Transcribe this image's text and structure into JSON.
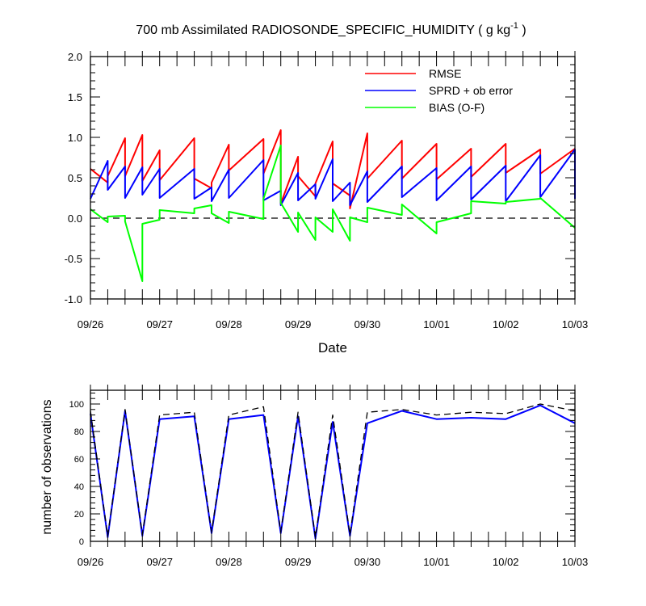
{
  "top_chart": {
    "title": "700 mb Assimilated RADIOSONDE_SPECIFIC_HUMIDITY ( g kg",
    "title_sup": "-1",
    "title_end": " )",
    "xlabel": "Date",
    "ylim": [
      -1.0,
      2.0
    ],
    "ytick_labels": [
      "2.0",
      "1.5",
      "1.0",
      "0.5",
      "0.0",
      "-0.5",
      "-1.0"
    ],
    "legend": [
      "RMSE",
      "SPRD + ob error",
      "BIAS (O-F)"
    ]
  },
  "bottom_chart": {
    "ylabel": "number of observations",
    "ylim": [
      0,
      110
    ],
    "ytick_labels": [
      "100",
      "80",
      "60",
      "40",
      "20",
      "0"
    ]
  },
  "x_tick_labels": [
    "09/26",
    "09/27",
    "09/28",
    "09/29",
    "09/30",
    "10/01",
    "10/02",
    "10/03"
  ],
  "colors": {
    "rmse": "#ff0000",
    "sprd": "#0000ff",
    "bias": "#00ff00",
    "count_used": "#0000ff",
    "count_total": "#000000"
  },
  "chart_data": [
    {
      "type": "line",
      "x_unit": "days since 09/26 00Z",
      "xlim": [
        0,
        7
      ],
      "ylim": [
        -1.0,
        2.0
      ],
      "series": [
        {
          "name": "RMSE",
          "points": [
            [
              0,
              0.61
            ],
            [
              0.25,
              0.44
            ],
            [
              0.25,
              0.52
            ],
            [
              0.5,
              0.99
            ],
            [
              0.5,
              0.52
            ],
            [
              0.75,
              1.03
            ],
            [
              0.75,
              0.46
            ],
            [
              1.0,
              0.84
            ],
            [
              1.0,
              0.47
            ],
            [
              1.5,
              0.99
            ],
            [
              1.5,
              0.49
            ],
            [
              1.75,
              0.37
            ],
            [
              1.75,
              0.44
            ],
            [
              2.0,
              0.91
            ],
            [
              2.0,
              0.59
            ],
            [
              2.5,
              0.98
            ],
            [
              2.5,
              0.55
            ],
            [
              2.75,
              1.09
            ],
            [
              2.75,
              0.18
            ],
            [
              3.0,
              0.76
            ],
            [
              3.0,
              0.52
            ],
            [
              3.25,
              0.27
            ],
            [
              3.25,
              0.43
            ],
            [
              3.5,
              0.95
            ],
            [
              3.5,
              0.43
            ],
            [
              3.75,
              0.28
            ],
            [
              3.75,
              0.12
            ],
            [
              4.0,
              1.05
            ],
            [
              4.0,
              0.49
            ],
            [
              4.5,
              0.96
            ],
            [
              4.5,
              0.49
            ],
            [
              5.0,
              0.92
            ],
            [
              5.0,
              0.48
            ],
            [
              5.5,
              0.86
            ],
            [
              5.5,
              0.51
            ],
            [
              6.0,
              0.92
            ],
            [
              6.0,
              0.56
            ],
            [
              6.5,
              0.85
            ],
            [
              6.5,
              0.55
            ],
            [
              7.0,
              0.86
            ]
          ]
        },
        {
          "name": "SPRD + ob error",
          "points": [
            [
              0,
              0.24
            ],
            [
              0.25,
              0.71
            ],
            [
              0.25,
              0.35
            ],
            [
              0.5,
              0.64
            ],
            [
              0.5,
              0.25
            ],
            [
              0.75,
              0.63
            ],
            [
              0.75,
              0.29
            ],
            [
              1.0,
              0.61
            ],
            [
              1.0,
              0.25
            ],
            [
              1.5,
              0.61
            ],
            [
              1.5,
              0.24
            ],
            [
              1.75,
              0.38
            ],
            [
              1.75,
              0.21
            ],
            [
              2.0,
              0.6
            ],
            [
              2.0,
              0.25
            ],
            [
              2.5,
              0.72
            ],
            [
              2.5,
              0.22
            ],
            [
              2.75,
              0.34
            ],
            [
              2.75,
              0.16
            ],
            [
              3.0,
              0.56
            ],
            [
              3.0,
              0.22
            ],
            [
              3.25,
              0.42
            ],
            [
              3.25,
              0.24
            ],
            [
              3.5,
              0.73
            ],
            [
              3.5,
              0.21
            ],
            [
              3.75,
              0.44
            ],
            [
              3.75,
              0.16
            ],
            [
              4.0,
              0.58
            ],
            [
              4.0,
              0.2
            ],
            [
              4.5,
              0.64
            ],
            [
              4.5,
              0.26
            ],
            [
              5.0,
              0.62
            ],
            [
              5.0,
              0.22
            ],
            [
              5.5,
              0.64
            ],
            [
              5.5,
              0.23
            ],
            [
              6.0,
              0.65
            ],
            [
              6.0,
              0.21
            ],
            [
              6.5,
              0.78
            ],
            [
              6.5,
              0.26
            ],
            [
              7.0,
              0.85
            ],
            [
              7.0,
              0.24
            ]
          ]
        },
        {
          "name": "BIAS (O-F)",
          "points": [
            [
              0,
              0.11
            ],
            [
              0.25,
              -0.05
            ],
            [
              0.25,
              0.02
            ],
            [
              0.5,
              0.03
            ],
            [
              0.5,
              -0.04
            ],
            [
              0.75,
              -0.78
            ],
            [
              0.75,
              -0.07
            ],
            [
              1.0,
              -0.02
            ],
            [
              1.0,
              0.1
            ],
            [
              1.5,
              0.06
            ],
            [
              1.5,
              0.12
            ],
            [
              1.75,
              0.16
            ],
            [
              1.75,
              0.06
            ],
            [
              2.0,
              -0.06
            ],
            [
              2.0,
              0.08
            ],
            [
              2.5,
              -0.01
            ],
            [
              2.5,
              0.24
            ],
            [
              2.75,
              0.9
            ],
            [
              2.75,
              0.19
            ],
            [
              3.0,
              -0.17
            ],
            [
              3.0,
              0.07
            ],
            [
              3.25,
              -0.27
            ],
            [
              3.25,
              0.01
            ],
            [
              3.5,
              -0.17
            ],
            [
              3.5,
              0.11
            ],
            [
              3.75,
              -0.28
            ],
            [
              3.75,
              0.01
            ],
            [
              4.0,
              -0.05
            ],
            [
              4.0,
              0.13
            ],
            [
              4.5,
              0.04
            ],
            [
              4.5,
              0.17
            ],
            [
              5.0,
              -0.19
            ],
            [
              5.0,
              -0.05
            ],
            [
              5.5,
              0.06
            ],
            [
              5.5,
              0.21
            ],
            [
              6.0,
              0.18
            ],
            [
              6.0,
              0.2
            ],
            [
              6.5,
              0.24
            ],
            [
              6.5,
              0.25
            ],
            [
              7.0,
              -0.12
            ]
          ]
        }
      ]
    },
    {
      "type": "line",
      "x_unit": "days since 09/26 00Z",
      "xlim": [
        0,
        7
      ],
      "ylim": [
        0,
        110
      ],
      "ylabel": "number of observations",
      "series": [
        {
          "name": "used",
          "points": [
            [
              0,
              93
            ],
            [
              0.25,
              3
            ],
            [
              0.5,
              95
            ],
            [
              0.75,
              4
            ],
            [
              1.0,
              89
            ],
            [
              1.5,
              91
            ],
            [
              1.75,
              6
            ],
            [
              2.0,
              89
            ],
            [
              2.5,
              92
            ],
            [
              2.75,
              6
            ],
            [
              3.0,
              91
            ],
            [
              3.25,
              2
            ],
            [
              3.5,
              87
            ],
            [
              3.75,
              4
            ],
            [
              4.0,
              86
            ],
            [
              4.5,
              95
            ],
            [
              5.0,
              89
            ],
            [
              5.5,
              90
            ],
            [
              6.0,
              89
            ],
            [
              6.5,
              99
            ],
            [
              7.0,
              86
            ]
          ]
        },
        {
          "name": "total",
          "points": [
            [
              0,
              95
            ],
            [
              0.25,
              4
            ],
            [
              0.5,
              96
            ],
            [
              0.75,
              5
            ],
            [
              1.0,
              92
            ],
            [
              1.5,
              94
            ],
            [
              1.75,
              7
            ],
            [
              2.0,
              92
            ],
            [
              2.5,
              98
            ],
            [
              2.75,
              7
            ],
            [
              3.0,
              94
            ],
            [
              3.25,
              3
            ],
            [
              3.5,
              92
            ],
            [
              3.75,
              5
            ],
            [
              4.0,
              94
            ],
            [
              4.5,
              96
            ],
            [
              5.0,
              92
            ],
            [
              5.5,
              94
            ],
            [
              6.0,
              93
            ],
            [
              6.5,
              100
            ],
            [
              7.0,
              95
            ]
          ]
        }
      ]
    }
  ]
}
